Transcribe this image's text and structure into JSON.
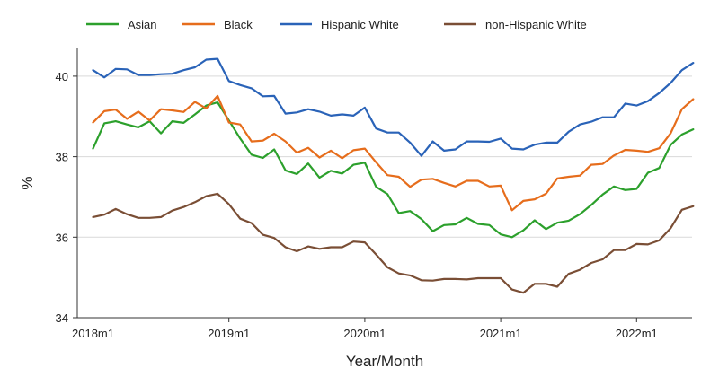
{
  "chart_data": {
    "type": "line",
    "xlabel": "Year/Month",
    "ylabel": "%",
    "ylim": [
      34,
      40.6
    ],
    "xlim": [
      "2018-01",
      "2022-06"
    ],
    "grid": true,
    "legend_position": "top",
    "y_ticks": [
      "34",
      "36",
      "38",
      "40"
    ],
    "x_ticks": [
      "2018m1",
      "2019m1",
      "2020m1",
      "2021m1",
      "2022m1"
    ],
    "x": [
      "2018-01",
      "2018-02",
      "2018-03",
      "2018-04",
      "2018-05",
      "2018-06",
      "2018-07",
      "2018-08",
      "2018-09",
      "2018-10",
      "2018-11",
      "2018-12",
      "2019-01",
      "2019-02",
      "2019-03",
      "2019-04",
      "2019-05",
      "2019-06",
      "2019-07",
      "2019-08",
      "2019-09",
      "2019-10",
      "2019-11",
      "2019-12",
      "2020-01",
      "2020-02",
      "2020-03",
      "2020-04",
      "2020-05",
      "2020-06",
      "2020-07",
      "2020-08",
      "2020-09",
      "2020-10",
      "2020-11",
      "2020-12",
      "2021-01",
      "2021-02",
      "2021-03",
      "2021-04",
      "2021-05",
      "2021-06",
      "2021-07",
      "2021-08",
      "2021-09",
      "2021-10",
      "2021-11",
      "2021-12",
      "2022-01",
      "2022-02",
      "2022-03",
      "2022-04",
      "2022-05",
      "2022-06"
    ],
    "series": [
      {
        "name": "Asian",
        "color": "#2ca02c",
        "values": [
          38.2,
          38.83,
          38.88,
          38.8,
          38.73,
          38.88,
          38.58,
          38.88,
          38.84,
          39.05,
          39.27,
          39.35,
          38.9,
          38.45,
          38.05,
          37.97,
          38.18,
          37.66,
          37.57,
          37.83,
          37.48,
          37.65,
          37.58,
          37.8,
          37.85,
          37.25,
          37.07,
          36.6,
          36.65,
          36.45,
          36.15,
          36.3,
          36.32,
          36.48,
          36.33,
          36.3,
          36.07,
          36.0,
          36.17,
          36.42,
          36.2,
          36.36,
          36.41,
          36.57,
          36.8,
          37.06,
          37.26,
          37.17,
          37.2,
          37.6,
          37.72,
          38.29,
          38.55,
          38.68
        ]
      },
      {
        "name": "Black",
        "color": "#e66d1c",
        "values": [
          38.85,
          39.13,
          39.17,
          38.94,
          39.12,
          38.9,
          39.18,
          39.15,
          39.11,
          39.36,
          39.2,
          39.51,
          38.85,
          38.8,
          38.38,
          38.4,
          38.57,
          38.38,
          38.1,
          38.22,
          37.98,
          38.15,
          37.96,
          38.16,
          38.2,
          37.86,
          37.54,
          37.5,
          37.25,
          37.43,
          37.45,
          37.35,
          37.26,
          37.4,
          37.4,
          37.26,
          37.28,
          36.67,
          36.9,
          36.94,
          37.08,
          37.46,
          37.5,
          37.53,
          37.8,
          37.82,
          38.03,
          38.17,
          38.15,
          38.12,
          38.21,
          38.58,
          39.18,
          39.43
        ]
      },
      {
        "name": "Hispanic White",
        "color": "#2a63b8",
        "values": [
          40.15,
          39.97,
          40.18,
          40.17,
          40.03,
          40.03,
          40.05,
          40.06,
          40.15,
          40.22,
          40.41,
          40.43,
          39.88,
          39.78,
          39.7,
          39.5,
          39.51,
          39.07,
          39.1,
          39.18,
          39.12,
          39.02,
          39.05,
          39.02,
          39.22,
          38.7,
          38.6,
          38.6,
          38.35,
          38.02,
          38.38,
          38.15,
          38.18,
          38.38,
          38.38,
          38.37,
          38.45,
          38.2,
          38.18,
          38.3,
          38.35,
          38.35,
          38.62,
          38.8,
          38.87,
          38.98,
          38.98,
          39.32,
          39.27,
          39.38,
          39.58,
          39.83,
          40.15,
          40.33
        ]
      },
      {
        "name": "non-Hispanic White",
        "color": "#7a4e35",
        "values": [
          36.5,
          36.56,
          36.7,
          36.57,
          36.48,
          36.48,
          36.5,
          36.66,
          36.75,
          36.87,
          37.02,
          37.08,
          36.82,
          36.46,
          36.35,
          36.06,
          35.98,
          35.75,
          35.65,
          35.77,
          35.71,
          35.75,
          35.75,
          35.89,
          35.87,
          35.57,
          35.25,
          35.1,
          35.05,
          34.93,
          34.92,
          34.96,
          34.96,
          34.95,
          34.98,
          34.98,
          34.98,
          34.7,
          34.62,
          34.84,
          34.84,
          34.77,
          35.09,
          35.19,
          35.36,
          35.45,
          35.68,
          35.68,
          35.83,
          35.82,
          35.92,
          36.22,
          36.68,
          36.77
        ]
      }
    ]
  }
}
